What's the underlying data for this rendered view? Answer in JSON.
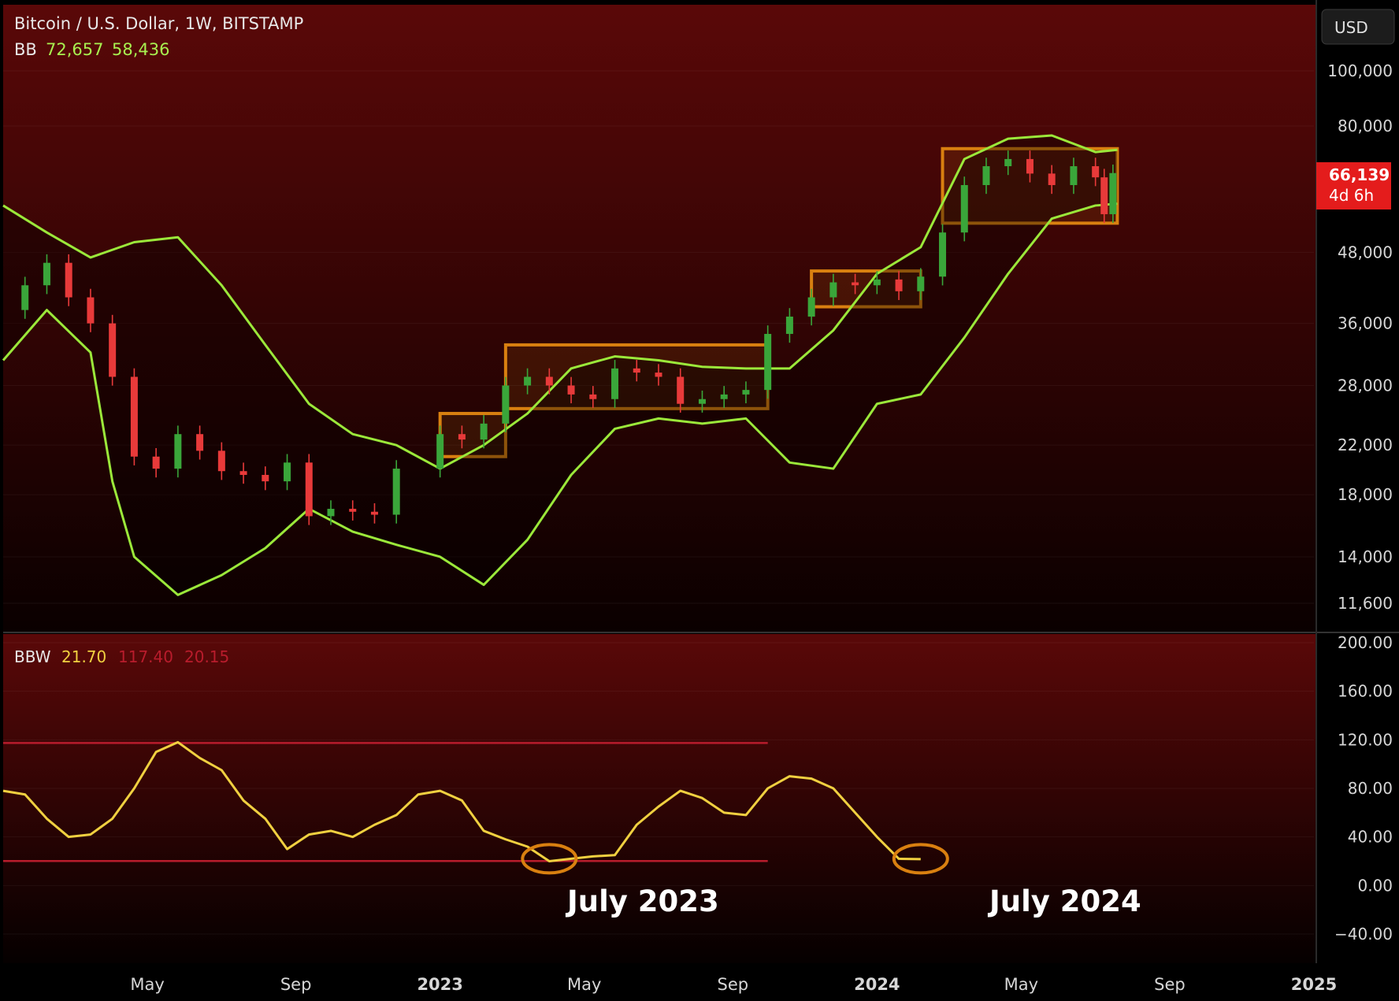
{
  "header": {
    "symbol_title": "Bitcoin / U.S. Dollar, 1W, BITSTAMP",
    "bb_label": "BB",
    "bb_upper": "72,657",
    "bb_lower": "58,436"
  },
  "currency_button": "USD",
  "price_tag": {
    "price": "66,139",
    "countdown": "4d 6h"
  },
  "bbw_header": {
    "label": "BBW",
    "value": "21.70",
    "high": "117.40",
    "low": "20.15"
  },
  "annotations": {
    "left": "July 2023",
    "right": "July 2024"
  },
  "colors": {
    "bg_top": "#5a0808",
    "bg_bottom": "#050000",
    "bb_line": "#9be83a",
    "up_candle": "#3aa63a",
    "down_candle": "#e83a3a",
    "box": "#d98010",
    "bbw_line": "#f0d040",
    "bbw_ref": "#b81c2c",
    "price_tag_bg": "#e41c1c",
    "axis_text": "#d6d6d6"
  },
  "chart_data": [
    {
      "type": "candlestick",
      "title": "Bitcoin / U.S. Dollar, 1W, BITSTAMP",
      "scale": "log",
      "y_ticks": [
        100000,
        80000,
        66139,
        48000,
        36000,
        28000,
        22000,
        18000,
        14000,
        11600
      ],
      "y_tick_labels": [
        "100,000",
        "80,000",
        "",
        "48,000",
        "36,000",
        "28,000",
        "22,000",
        "18,000",
        "14,000",
        "11,600"
      ],
      "x_ticks": [
        "May",
        "Sep",
        "2023",
        "May",
        "Sep",
        "2024",
        "May",
        "Sep",
        "2025"
      ],
      "last_price": 66139,
      "series": [
        {
          "name": "BB",
          "upper": [
            [
              2022.0,
              58000
            ],
            [
              2022.1,
              52000
            ],
            [
              2022.2,
              47000
            ],
            [
              2022.3,
              50000
            ],
            [
              2022.4,
              51000
            ],
            [
              2022.5,
              42000
            ],
            [
              2022.6,
              33000
            ],
            [
              2022.7,
              26000
            ],
            [
              2022.8,
              23000
            ],
            [
              2022.9,
              22000
            ],
            [
              2023.0,
              20000
            ],
            [
              2023.1,
              22000
            ],
            [
              2023.2,
              25000
            ],
            [
              2023.3,
              30000
            ],
            [
              2023.4,
              31500
            ],
            [
              2023.5,
              31000
            ],
            [
              2023.6,
              30200
            ],
            [
              2023.7,
              30000
            ],
            [
              2023.8,
              30000
            ],
            [
              2023.9,
              35000
            ],
            [
              2024.0,
              44000
            ],
            [
              2024.1,
              49000
            ],
            [
              2024.2,
              70000
            ],
            [
              2024.3,
              76000
            ],
            [
              2024.4,
              77000
            ],
            [
              2024.5,
              72000
            ],
            [
              2024.55,
              72657
            ]
          ],
          "lower": [
            [
              2022.0,
              31000
            ],
            [
              2022.1,
              38000
            ],
            [
              2022.2,
              32000
            ],
            [
              2022.25,
              19000
            ],
            [
              2022.3,
              14000
            ],
            [
              2022.4,
              12000
            ],
            [
              2022.5,
              13000
            ],
            [
              2022.6,
              14500
            ],
            [
              2022.7,
              17000
            ],
            [
              2022.8,
              15500
            ],
            [
              2022.9,
              14700
            ],
            [
              2023.0,
              14000
            ],
            [
              2023.1,
              12500
            ],
            [
              2023.2,
              15000
            ],
            [
              2023.3,
              19500
            ],
            [
              2023.4,
              23500
            ],
            [
              2023.5,
              24500
            ],
            [
              2023.6,
              24000
            ],
            [
              2023.7,
              24500
            ],
            [
              2023.8,
              20500
            ],
            [
              2023.9,
              20000
            ],
            [
              2024.0,
              26000
            ],
            [
              2024.1,
              27000
            ],
            [
              2024.2,
              34000
            ],
            [
              2024.3,
              44000
            ],
            [
              2024.4,
              55000
            ],
            [
              2024.5,
              58000
            ],
            [
              2024.55,
              58436
            ]
          ]
        },
        {
          "name": "Price",
          "values": [
            [
              2022.0,
              38000
            ],
            [
              2022.05,
              42000
            ],
            [
              2022.1,
              46000
            ],
            [
              2022.15,
              40000
            ],
            [
              2022.2,
              36000
            ],
            [
              2022.25,
              29000
            ],
            [
              2022.3,
              21000
            ],
            [
              2022.35,
              20000
            ],
            [
              2022.4,
              23000
            ],
            [
              2022.45,
              21500
            ],
            [
              2022.5,
              19800
            ],
            [
              2022.55,
              19500
            ],
            [
              2022.6,
              19000
            ],
            [
              2022.65,
              20500
            ],
            [
              2022.7,
              16500
            ],
            [
              2022.75,
              17000
            ],
            [
              2022.8,
              16800
            ],
            [
              2022.85,
              16600
            ],
            [
              2022.9,
              20000
            ],
            [
              2023.0,
              23000
            ],
            [
              2023.05,
              22500
            ],
            [
              2023.1,
              24000
            ],
            [
              2023.15,
              28000
            ],
            [
              2023.2,
              29000
            ],
            [
              2023.25,
              28000
            ],
            [
              2023.3,
              27000
            ],
            [
              2023.35,
              26500
            ],
            [
              2023.4,
              30000
            ],
            [
              2023.45,
              29500
            ],
            [
              2023.5,
              29000
            ],
            [
              2023.55,
              26000
            ],
            [
              2023.6,
              26500
            ],
            [
              2023.65,
              27000
            ],
            [
              2023.7,
              27500
            ],
            [
              2023.75,
              34500
            ],
            [
              2023.8,
              37000
            ],
            [
              2023.85,
              40000
            ],
            [
              2023.9,
              42500
            ],
            [
              2023.95,
              42000
            ],
            [
              2024.0,
              43000
            ],
            [
              2024.05,
              41000
            ],
            [
              2024.1,
              43500
            ],
            [
              2024.15,
              52000
            ],
            [
              2024.2,
              63000
            ],
            [
              2024.25,
              68000
            ],
            [
              2024.3,
              70000
            ],
            [
              2024.35,
              66000
            ],
            [
              2024.4,
              63000
            ],
            [
              2024.45,
              68000
            ],
            [
              2024.5,
              65000
            ],
            [
              2024.52,
              56000
            ],
            [
              2024.54,
              66139
            ]
          ]
        }
      ],
      "boxes": [
        [
          2023.0,
          2023.15,
          21000,
          25000
        ],
        [
          2023.15,
          2023.75,
          25500,
          33000
        ],
        [
          2023.85,
          2024.1,
          38500,
          44500
        ],
        [
          2024.15,
          2024.55,
          54000,
          73000
        ]
      ]
    },
    {
      "type": "line",
      "title": "BBW",
      "y_ticks": [
        200,
        160,
        120,
        80,
        40,
        0,
        -40
      ],
      "y_tick_labels": [
        "200.00",
        "160.00",
        "120.00",
        "80.00",
        "40.00",
        "0.00",
        "−40.00"
      ],
      "series": [
        {
          "name": "BBW",
          "values": [
            [
              2022.0,
              78
            ],
            [
              2022.05,
              75
            ],
            [
              2022.1,
              55
            ],
            [
              2022.15,
              40
            ],
            [
              2022.2,
              42
            ],
            [
              2022.25,
              55
            ],
            [
              2022.3,
              80
            ],
            [
              2022.35,
              110
            ],
            [
              2022.4,
              118
            ],
            [
              2022.45,
              105
            ],
            [
              2022.5,
              95
            ],
            [
              2022.55,
              70
            ],
            [
              2022.6,
              55
            ],
            [
              2022.65,
              30
            ],
            [
              2022.7,
              42
            ],
            [
              2022.75,
              45
            ],
            [
              2022.8,
              40
            ],
            [
              2022.85,
              50
            ],
            [
              2022.9,
              58
            ],
            [
              2022.95,
              75
            ],
            [
              2023.0,
              78
            ],
            [
              2023.05,
              70
            ],
            [
              2023.1,
              45
            ],
            [
              2023.15,
              38
            ],
            [
              2023.2,
              32
            ],
            [
              2023.25,
              20
            ],
            [
              2023.3,
              22
            ],
            [
              2023.35,
              24
            ],
            [
              2023.4,
              25
            ],
            [
              2023.45,
              50
            ],
            [
              2023.5,
              65
            ],
            [
              2023.55,
              78
            ],
            [
              2023.6,
              72
            ],
            [
              2023.65,
              60
            ],
            [
              2023.7,
              58
            ],
            [
              2023.75,
              80
            ],
            [
              2023.8,
              90
            ],
            [
              2023.85,
              88
            ],
            [
              2023.9,
              80
            ],
            [
              2023.95,
              60
            ],
            [
              2024.0,
              40
            ],
            [
              2024.05,
              22
            ],
            [
              2024.1,
              21.7
            ]
          ]
        },
        {
          "name": "Highest",
          "values": [
            [
              2022.0,
              117.4
            ],
            [
              2023.75,
              117.4
            ]
          ]
        },
        {
          "name": "Lowest",
          "values": [
            [
              2022.0,
              20.15
            ],
            [
              2023.75,
              20.15
            ]
          ]
        }
      ]
    }
  ]
}
